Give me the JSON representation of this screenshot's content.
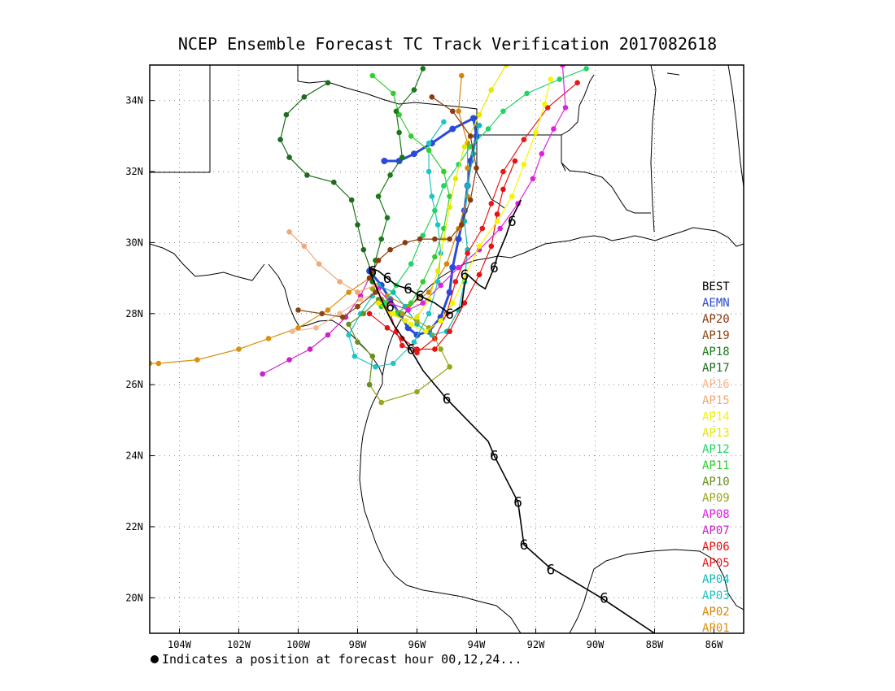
{
  "title": "NCEP Ensemble Forecast TC Track Verification 2017082618",
  "footnote": "Indicates a position at forecast hour 00,12,24...",
  "map": {
    "lon_range": [
      -105,
      -85
    ],
    "lat_range": [
      19,
      35
    ],
    "lon_ticks": [
      {
        "lon": -104,
        "label": "104W"
      },
      {
        "lon": -102,
        "label": "102W"
      },
      {
        "lon": -100,
        "label": "100W"
      },
      {
        "lon": -98,
        "label": "98W"
      },
      {
        "lon": -96,
        "label": "96W"
      },
      {
        "lon": -94,
        "label": "94W"
      },
      {
        "lon": -92,
        "label": "92W"
      },
      {
        "lon": -90,
        "label": "90W"
      },
      {
        "lon": -88,
        "label": "88W"
      },
      {
        "lon": -86,
        "label": "86W"
      }
    ],
    "lat_ticks": [
      {
        "lat": 20,
        "label": "20N"
      },
      {
        "lat": 22,
        "label": "22N"
      },
      {
        "lat": 24,
        "label": "24N"
      },
      {
        "lat": 26,
        "label": "26N"
      },
      {
        "lat": 28,
        "label": "28N"
      },
      {
        "lat": 30,
        "label": "30N"
      },
      {
        "lat": 32,
        "label": "32N"
      },
      {
        "lat": 34,
        "label": "34N"
      }
    ],
    "grid": "dotted"
  },
  "legend": [
    {
      "name": "BEST",
      "color": "#000000"
    },
    {
      "name": "AEMN",
      "color": "#2a4bd7"
    },
    {
      "name": "AP20",
      "color": "#8b3a0f"
    },
    {
      "name": "AP19",
      "color": "#8b4513"
    },
    {
      "name": "AP18",
      "color": "#1a7a1a"
    },
    {
      "name": "AP17",
      "color": "#1e6b1e"
    },
    {
      "name": "AP16",
      "color": "#f4b88a"
    },
    {
      "name": "AP15",
      "color": "#f0a878"
    },
    {
      "name": "AP14",
      "color": "#f5f500"
    },
    {
      "name": "AP13",
      "color": "#e8e800"
    },
    {
      "name": "AP12",
      "color": "#22d466"
    },
    {
      "name": "AP11",
      "color": "#33cc33"
    },
    {
      "name": "AP10",
      "color": "#6b8e23"
    },
    {
      "name": "AP09",
      "color": "#9aa61a"
    },
    {
      "name": "AP08",
      "color": "#e020e0"
    },
    {
      "name": "AP07",
      "color": "#cc22cc"
    },
    {
      "name": "AP06",
      "color": "#e81010"
    },
    {
      "name": "AP05",
      "color": "#e81818"
    },
    {
      "name": "AP04",
      "color": "#10b8b8"
    },
    {
      "name": "AP03",
      "color": "#20c4c4"
    },
    {
      "name": "AP02",
      "color": "#d4870a"
    },
    {
      "name": "AP01",
      "color": "#d9900f"
    }
  ],
  "best_track": [
    [
      -88.0,
      19.0
    ],
    [
      -89.8,
      20.0
    ],
    [
      -91.6,
      20.9
    ],
    [
      -92.4,
      21.5
    ],
    [
      -92.6,
      22.7
    ],
    [
      -93.4,
      24.0
    ],
    [
      -93.6,
      24.4
    ],
    [
      -95.0,
      25.6
    ],
    [
      -95.8,
      26.4
    ],
    [
      -96.3,
      27.1
    ],
    [
      -96.8,
      27.7
    ],
    [
      -97.1,
      28.2
    ],
    [
      -97.3,
      28.6
    ],
    [
      -97.5,
      29.0
    ],
    [
      -97.6,
      29.3
    ],
    [
      -97.3,
      29.2
    ],
    [
      -97.0,
      29.0
    ],
    [
      -96.7,
      28.8
    ],
    [
      -96.3,
      28.7
    ],
    [
      -95.9,
      28.5
    ],
    [
      -95.4,
      28.3
    ],
    [
      -94.9,
      28.0
    ],
    [
      -94.5,
      28.2
    ],
    [
      -94.4,
      28.8
    ],
    [
      -94.3,
      29.1
    ],
    [
      -93.9,
      28.8
    ],
    [
      -93.7,
      28.7
    ],
    [
      -93.4,
      29.3
    ],
    [
      -93.3,
      29.6
    ],
    [
      -93.0,
      30.2
    ],
    [
      -92.8,
      30.7
    ],
    [
      -92.5,
      31.2
    ]
  ],
  "best_track_symbols": [
    [
      -89.7,
      20.0
    ],
    [
      -91.5,
      20.8
    ],
    [
      -92.4,
      21.5
    ],
    [
      -92.6,
      22.7
    ],
    [
      -93.4,
      24.0
    ],
    [
      -95.0,
      25.6
    ],
    [
      -96.2,
      27.0
    ],
    [
      -96.9,
      28.2
    ],
    [
      -97.5,
      29.2
    ],
    [
      -97.0,
      29.0
    ],
    [
      -96.3,
      28.7
    ],
    [
      -95.9,
      28.5
    ],
    [
      -94.9,
      28.0
    ],
    [
      -94.4,
      29.1
    ],
    [
      -93.4,
      29.3
    ],
    [
      -92.8,
      30.6
    ]
  ],
  "ensemble_tracks": [
    {
      "member": "AEMN",
      "points": [
        [
          -97.6,
          29.2
        ],
        [
          -97.2,
          28.8
        ],
        [
          -96.9,
          28.4
        ],
        [
          -96.6,
          28.0
        ],
        [
          -96.3,
          27.6
        ],
        [
          -96.0,
          27.4
        ],
        [
          -95.6,
          27.5
        ],
        [
          -95.2,
          27.9
        ],
        [
          -94.9,
          28.6
        ],
        [
          -94.8,
          29.3
        ],
        [
          -94.6,
          30.1
        ],
        [
          -94.4,
          30.9
        ],
        [
          -94.3,
          31.6
        ],
        [
          -94.2,
          32.3
        ],
        [
          -94.0,
          33.0
        ],
        [
          -94.1,
          33.5
        ],
        [
          -94.8,
          33.2
        ],
        [
          -95.5,
          32.8
        ],
        [
          -96.1,
          32.5
        ],
        [
          -96.6,
          32.3
        ],
        [
          -97.1,
          32.3
        ]
      ]
    },
    {
      "member": "AP01",
      "points": [
        [
          -97.6,
          29.0
        ],
        [
          -98.3,
          28.6
        ],
        [
          -99.0,
          28.1
        ],
        [
          -100.0,
          27.6
        ],
        [
          -101.0,
          27.3
        ],
        [
          -102.0,
          27.0
        ],
        [
          -103.4,
          26.7
        ],
        [
          -104.7,
          26.6
        ],
        [
          -105.0,
          26.6
        ]
      ]
    },
    {
      "member": "AP02",
      "points": [
        [
          -97.0,
          28.5
        ],
        [
          -96.3,
          28.2
        ],
        [
          -95.6,
          28.6
        ],
        [
          -95.0,
          29.4
        ],
        [
          -94.6,
          30.4
        ],
        [
          -94.3,
          31.3
        ],
        [
          -94.3,
          32.1
        ],
        [
          -94.3,
          32.8
        ],
        [
          -94.6,
          33.7
        ],
        [
          -94.5,
          34.7
        ]
      ]
    },
    {
      "member": "AP03",
      "points": [
        [
          -97.5,
          28.5
        ],
        [
          -97.9,
          28.0
        ],
        [
          -98.3,
          27.4
        ],
        [
          -98.1,
          26.8
        ],
        [
          -97.4,
          26.5
        ],
        [
          -96.8,
          26.6
        ],
        [
          -96.1,
          27.2
        ],
        [
          -95.6,
          28.0
        ],
        [
          -95.3,
          28.9
        ],
        [
          -95.2,
          29.7
        ],
        [
          -95.3,
          30.5
        ],
        [
          -95.5,
          31.3
        ],
        [
          -95.6,
          32.0
        ],
        [
          -95.6,
          32.8
        ],
        [
          -95.1,
          33.4
        ]
      ]
    },
    {
      "member": "AP04",
      "points": [
        [
          -97.3,
          28.8
        ],
        [
          -96.8,
          28.6
        ],
        [
          -96.4,
          28.2
        ],
        [
          -96.0,
          27.7
        ],
        [
          -95.5,
          27.4
        ],
        [
          -95.0,
          27.5
        ],
        [
          -94.6,
          28.1
        ],
        [
          -94.4,
          28.9
        ],
        [
          -94.3,
          29.8
        ],
        [
          -94.4,
          30.6
        ],
        [
          -94.3,
          31.6
        ],
        [
          -94.1,
          32.5
        ],
        [
          -93.9,
          33.3
        ]
      ]
    },
    {
      "member": "AP05",
      "points": [
        [
          -97.2,
          28.4
        ],
        [
          -96.9,
          28.0
        ],
        [
          -96.7,
          27.5
        ],
        [
          -96.5,
          27.1
        ],
        [
          -96.0,
          26.9
        ],
        [
          -95.4,
          27.3
        ],
        [
          -95.0,
          28.0
        ],
        [
          -94.7,
          28.9
        ],
        [
          -94.3,
          29.7
        ],
        [
          -93.8,
          30.4
        ],
        [
          -93.5,
          31.1
        ],
        [
          -93.1,
          32.0
        ],
        [
          -92.4,
          32.9
        ],
        [
          -91.6,
          33.8
        ],
        [
          -90.6,
          34.5
        ]
      ]
    },
    {
      "member": "AP06",
      "points": [
        [
          -97.6,
          28.0
        ],
        [
          -97.0,
          27.6
        ],
        [
          -96.5,
          27.3
        ],
        [
          -96.0,
          27.0
        ],
        [
          -95.4,
          27.0
        ],
        [
          -94.9,
          27.5
        ],
        [
          -94.4,
          28.3
        ],
        [
          -93.9,
          29.1
        ],
        [
          -93.5,
          29.9
        ],
        [
          -93.3,
          30.8
        ],
        [
          -93.1,
          31.5
        ],
        [
          -92.7,
          32.3
        ]
      ]
    },
    {
      "member": "AP07",
      "points": [
        [
          -97.5,
          29.2
        ],
        [
          -97.9,
          28.5
        ],
        [
          -98.4,
          27.9
        ],
        [
          -99.0,
          27.4
        ],
        [
          -99.6,
          27.0
        ],
        [
          -100.3,
          26.7
        ],
        [
          -101.2,
          26.3
        ]
      ]
    },
    {
      "member": "AP08",
      "points": [
        [
          -97.3,
          28.7
        ],
        [
          -96.9,
          28.3
        ],
        [
          -96.3,
          28.1
        ],
        [
          -95.8,
          28.3
        ],
        [
          -95.2,
          28.8
        ],
        [
          -94.6,
          29.3
        ],
        [
          -93.9,
          29.8
        ],
        [
          -93.2,
          30.4
        ],
        [
          -92.6,
          31.1
        ],
        [
          -92.1,
          31.8
        ],
        [
          -91.8,
          32.5
        ],
        [
          -91.4,
          33.2
        ],
        [
          -91.0,
          33.8
        ],
        [
          -91.1,
          35.0
        ]
      ]
    },
    {
      "member": "AP09",
      "points": [
        [
          -97.5,
          28.7
        ],
        [
          -97.0,
          28.3
        ],
        [
          -96.5,
          28.0
        ],
        [
          -96.0,
          27.8
        ],
        [
          -95.6,
          27.6
        ],
        [
          -95.2,
          27.0
        ],
        [
          -94.9,
          26.5
        ],
        [
          -96.0,
          25.8
        ],
        [
          -97.2,
          25.5
        ],
        [
          -97.6,
          26.0
        ]
      ]
    },
    {
      "member": "AP10",
      "points": [
        [
          -97.3,
          28.4
        ],
        [
          -97.8,
          28.0
        ],
        [
          -98.3,
          27.7
        ],
        [
          -98.0,
          27.2
        ],
        [
          -97.5,
          26.8
        ],
        [
          -97.6,
          26.0
        ]
      ]
    },
    {
      "member": "AP11",
      "points": [
        [
          -97.2,
          28.2
        ],
        [
          -96.7,
          28.0
        ],
        [
          -96.2,
          28.3
        ],
        [
          -95.8,
          28.9
        ],
        [
          -95.4,
          29.6
        ],
        [
          -95.1,
          30.4
        ],
        [
          -94.9,
          31.3
        ],
        [
          -95.1,
          32.0
        ],
        [
          -95.6,
          32.6
        ],
        [
          -96.2,
          33.0
        ],
        [
          -96.6,
          33.6
        ],
        [
          -96.8,
          34.2
        ],
        [
          -97.5,
          34.7
        ]
      ]
    },
    {
      "member": "AP12",
      "points": [
        [
          -97.1,
          28.3
        ],
        [
          -96.7,
          28.8
        ],
        [
          -96.2,
          29.4
        ],
        [
          -95.8,
          30.2
        ],
        [
          -95.4,
          30.9
        ],
        [
          -95.1,
          31.6
        ],
        [
          -94.6,
          32.2
        ],
        [
          -94.2,
          32.7
        ],
        [
          -93.6,
          33.2
        ],
        [
          -93.1,
          33.7
        ],
        [
          -92.3,
          34.2
        ],
        [
          -91.2,
          34.6
        ],
        [
          -90.3,
          34.9
        ]
      ]
    },
    {
      "member": "AP13",
      "points": [
        [
          -97.3,
          28.3
        ],
        [
          -96.9,
          28.0
        ],
        [
          -96.4,
          27.8
        ],
        [
          -96.0,
          27.9
        ],
        [
          -95.6,
          28.4
        ],
        [
          -95.3,
          29.2
        ],
        [
          -95.1,
          30.1
        ],
        [
          -94.9,
          31.0
        ],
        [
          -94.7,
          31.8
        ],
        [
          -94.4,
          32.7
        ],
        [
          -93.9,
          33.6
        ],
        [
          -93.5,
          34.3
        ],
        [
          -93.0,
          35.0
        ]
      ]
    },
    {
      "member": "AP14",
      "points": [
        [
          -96.8,
          28.0
        ],
        [
          -96.2,
          27.7
        ],
        [
          -95.7,
          27.5
        ],
        [
          -95.2,
          27.8
        ],
        [
          -94.8,
          28.3
        ],
        [
          -94.4,
          29.0
        ],
        [
          -93.9,
          29.9
        ],
        [
          -93.3,
          30.6
        ],
        [
          -92.8,
          31.3
        ],
        [
          -92.4,
          32.2
        ],
        [
          -92.0,
          33.1
        ],
        [
          -91.7,
          33.9
        ],
        [
          -91.5,
          34.6
        ]
      ]
    },
    {
      "member": "AP15",
      "points": [
        [
          -97.4,
          28.8
        ],
        [
          -98.0,
          28.6
        ],
        [
          -98.6,
          28.9
        ],
        [
          -99.3,
          29.4
        ],
        [
          -99.8,
          29.9
        ],
        [
          -100.3,
          30.3
        ]
      ]
    },
    {
      "member": "AP16",
      "points": [
        [
          -97.3,
          28.6
        ],
        [
          -97.9,
          28.4
        ],
        [
          -98.6,
          28.0
        ],
        [
          -99.4,
          27.6
        ],
        [
          -100.2,
          27.5
        ]
      ]
    },
    {
      "member": "AP17",
      "points": [
        [
          -97.5,
          29.1
        ],
        [
          -97.8,
          29.8
        ],
        [
          -98.0,
          30.5
        ],
        [
          -98.2,
          31.2
        ],
        [
          -98.8,
          31.7
        ],
        [
          -99.7,
          31.9
        ],
        [
          -100.3,
          32.4
        ],
        [
          -100.6,
          32.9
        ],
        [
          -100.4,
          33.6
        ],
        [
          -99.8,
          34.1
        ],
        [
          -99.0,
          34.5
        ]
      ]
    },
    {
      "member": "AP18",
      "points": [
        [
          -97.5,
          28.9
        ],
        [
          -97.4,
          29.5
        ],
        [
          -97.2,
          30.1
        ],
        [
          -97.0,
          30.7
        ],
        [
          -97.3,
          31.3
        ],
        [
          -96.9,
          31.9
        ],
        [
          -96.5,
          32.4
        ],
        [
          -96.6,
          33.1
        ],
        [
          -96.7,
          33.7
        ],
        [
          -96.1,
          34.3
        ],
        [
          -95.8,
          34.9
        ]
      ]
    },
    {
      "member": "AP19",
      "points": [
        [
          -97.4,
          28.6
        ],
        [
          -98.0,
          28.2
        ],
        [
          -98.5,
          27.9
        ],
        [
          -99.2,
          28.0
        ],
        [
          -100.0,
          28.1
        ]
      ]
    },
    {
      "member": "AP20",
      "points": [
        [
          -97.6,
          29.0
        ],
        [
          -97.3,
          29.5
        ],
        [
          -96.9,
          29.8
        ],
        [
          -96.4,
          30.0
        ],
        [
          -95.9,
          30.1
        ],
        [
          -95.4,
          30.1
        ],
        [
          -94.9,
          30.1
        ],
        [
          -94.5,
          30.5
        ],
        [
          -94.2,
          31.2
        ],
        [
          -94.0,
          32.1
        ],
        [
          -94.2,
          33.0
        ],
        [
          -94.8,
          33.7
        ],
        [
          -95.5,
          34.1
        ]
      ]
    }
  ]
}
